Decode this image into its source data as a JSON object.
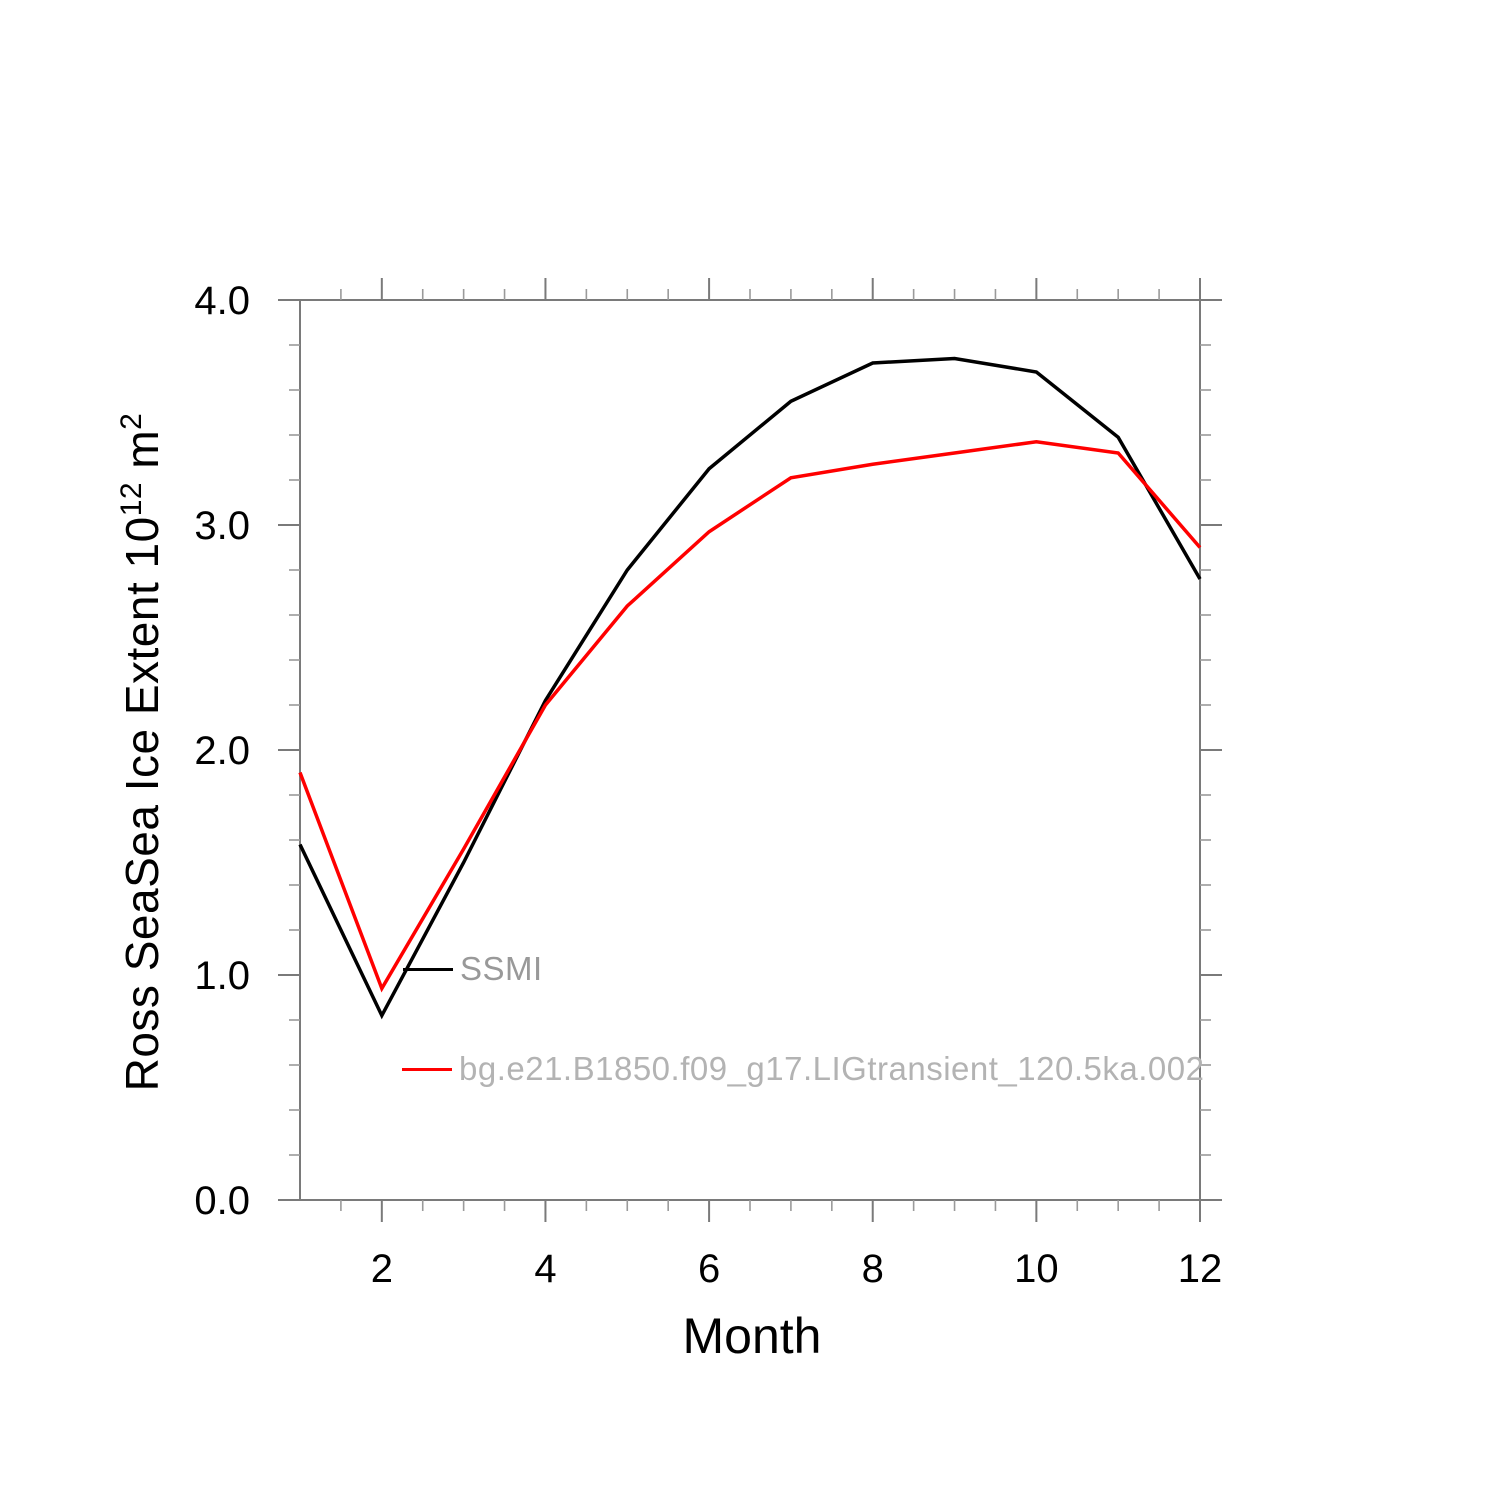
{
  "chart_data": {
    "type": "line",
    "title": "",
    "xlabel": "Month",
    "ylabel": "Ross SeaSea Ice Extent 10^12 m^2",
    "ylabel_parts": [
      {
        "text": "Ross SeaSea Ice Extent 10"
      },
      {
        "text": "12",
        "sup": true
      },
      {
        "text": " m"
      },
      {
        "text": "2",
        "sup": true
      }
    ],
    "x": [
      1,
      2,
      3,
      4,
      5,
      6,
      7,
      8,
      9,
      10,
      11,
      12
    ],
    "series": [
      {
        "name": "SSMI",
        "color": "#000000",
        "values": [
          1.58,
          0.82,
          1.5,
          2.22,
          2.8,
          3.25,
          3.55,
          3.72,
          3.74,
          3.68,
          3.39,
          2.76
        ]
      },
      {
        "name": "bg.e21.B1850.f09_g17.LIGtransient_120.5ka.002",
        "color": "#ff0000",
        "values": [
          1.9,
          0.94,
          1.56,
          2.2,
          2.64,
          2.97,
          3.21,
          3.27,
          3.32,
          3.37,
          3.32,
          2.9
        ]
      }
    ],
    "xlim": [
      1,
      12
    ],
    "ylim": [
      0,
      4
    ],
    "xticks_major": [
      2,
      4,
      6,
      8,
      10,
      12
    ],
    "xtick_labels": [
      "2",
      "4",
      "6",
      "8",
      "10",
      "12"
    ],
    "xticks_minor_step": 0.5,
    "yticks_major": [
      0,
      1,
      2,
      3,
      4
    ],
    "ytick_labels": [
      "0.0",
      "1.0",
      "2.0",
      "3.0",
      "4.0"
    ],
    "yticks_minor_step": 0.2,
    "grid": false,
    "legend_position": "inside-lower-left",
    "axis_color": "#7a7a7a",
    "minor_tick_color": "#9a9a9a",
    "tick_label_color": "#000000"
  },
  "legend": {
    "entries": [
      {
        "label": "SSMI",
        "line_color": "#000000",
        "label_color": "#999999"
      },
      {
        "label": "bg.e21.B1850.f09_g17.LIGtransient_120.5ka.002",
        "line_color": "#ff0000",
        "label_color": "#b3b3b3"
      }
    ]
  }
}
